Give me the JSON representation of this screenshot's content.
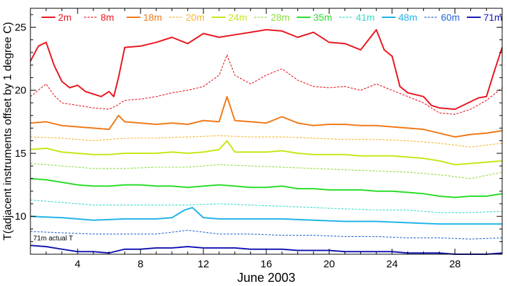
{
  "chart_data": {
    "type": "line",
    "title": "",
    "xlabel": "June 2003",
    "ylabel": "T(adjacent instruments offset by 1 degree C)",
    "xlim": [
      1,
      31
    ],
    "ylim": [
      7,
      26.5
    ],
    "xticks": [
      4,
      8,
      12,
      16,
      20,
      24,
      28
    ],
    "yticks": [
      10,
      15,
      20,
      25
    ],
    "grid": false,
    "legend_position": "top",
    "annotation": "71m actual T",
    "series": [
      {
        "name": "2m",
        "color": "#e8141c",
        "dash": "solid",
        "points": [
          [
            1,
            22.3
          ],
          [
            1.5,
            23.5
          ],
          [
            2,
            23.8
          ],
          [
            2.5,
            22
          ],
          [
            3,
            20.7
          ],
          [
            3.5,
            20.2
          ],
          [
            4,
            20.4
          ],
          [
            4.5,
            19.9
          ],
          [
            5,
            19.7
          ],
          [
            5.5,
            19.5
          ],
          [
            6,
            19.9
          ],
          [
            6.3,
            19.5
          ],
          [
            6.6,
            21
          ],
          [
            7,
            23.4
          ],
          [
            8,
            23.5
          ],
          [
            9,
            23.8
          ],
          [
            10,
            24.2
          ],
          [
            11,
            23.7
          ],
          [
            12,
            24.5
          ],
          [
            13,
            24.2
          ],
          [
            14,
            24.4
          ],
          [
            15,
            24.6
          ],
          [
            16,
            24.8
          ],
          [
            17,
            24.7
          ],
          [
            18,
            24.2
          ],
          [
            19,
            24.6
          ],
          [
            20,
            23.8
          ],
          [
            21,
            23.7
          ],
          [
            22,
            23.2
          ],
          [
            23,
            24.8
          ],
          [
            23.5,
            23.2
          ],
          [
            24,
            22.7
          ],
          [
            24.5,
            20.3
          ],
          [
            25,
            19.8
          ],
          [
            26,
            19.5
          ],
          [
            26.5,
            18.8
          ],
          [
            27,
            18.6
          ],
          [
            28,
            18.5
          ],
          [
            28.5,
            18.8
          ],
          [
            29,
            19.1
          ],
          [
            29.5,
            19.4
          ],
          [
            30,
            19.5
          ],
          [
            30.5,
            21.5
          ],
          [
            31,
            23.4
          ]
        ]
      },
      {
        "name": "8m",
        "color": "#e8141c",
        "dash": "dash",
        "points": [
          [
            1,
            19.5
          ],
          [
            2,
            20.5
          ],
          [
            2.5,
            19.6
          ],
          [
            3,
            19
          ],
          [
            4,
            18.8
          ],
          [
            5,
            18.6
          ],
          [
            6,
            18.5
          ],
          [
            6.5,
            18.8
          ],
          [
            7,
            19.2
          ],
          [
            8,
            19.3
          ],
          [
            9,
            19.5
          ],
          [
            10,
            19.8
          ],
          [
            11,
            20
          ],
          [
            12,
            20.3
          ],
          [
            13,
            21.2
          ],
          [
            13.5,
            22.8
          ],
          [
            14,
            21.2
          ],
          [
            15,
            20.5
          ],
          [
            16,
            21.2
          ],
          [
            17,
            21.7
          ],
          [
            18,
            20.8
          ],
          [
            19,
            20.3
          ],
          [
            20,
            20.2
          ],
          [
            21,
            20.3
          ],
          [
            22,
            20
          ],
          [
            23,
            20.5
          ],
          [
            24,
            20
          ],
          [
            25,
            19.5
          ],
          [
            26,
            19
          ],
          [
            27,
            18.2
          ],
          [
            28,
            18.1
          ],
          [
            29,
            18.5
          ],
          [
            30,
            19.2
          ],
          [
            31,
            20.2
          ]
        ]
      },
      {
        "name": "18m",
        "color": "#f07814",
        "dash": "solid",
        "points": [
          [
            1,
            17.4
          ],
          [
            2,
            17.5
          ],
          [
            3,
            17.2
          ],
          [
            4,
            17.1
          ],
          [
            5,
            17
          ],
          [
            6,
            16.9
          ],
          [
            6.6,
            18
          ],
          [
            7,
            17.5
          ],
          [
            8,
            17.4
          ],
          [
            9,
            17.3
          ],
          [
            10,
            17.4
          ],
          [
            11,
            17.3
          ],
          [
            12,
            17.6
          ],
          [
            13,
            17.5
          ],
          [
            13.5,
            19.5
          ],
          [
            14,
            17.6
          ],
          [
            15,
            17.5
          ],
          [
            16,
            17.4
          ],
          [
            17,
            17.9
          ],
          [
            18,
            17.4
          ],
          [
            19,
            17.2
          ],
          [
            20,
            17.3
          ],
          [
            21,
            17.3
          ],
          [
            22,
            17.2
          ],
          [
            23,
            17.2
          ],
          [
            24,
            17.1
          ],
          [
            25,
            17
          ],
          [
            26,
            16.9
          ],
          [
            27,
            16.6
          ],
          [
            28,
            16.3
          ],
          [
            29,
            16.5
          ],
          [
            30,
            16.6
          ],
          [
            31,
            16.8
          ]
        ]
      },
      {
        "name": "20m",
        "color": "#f5b428",
        "dash": "dash",
        "points": [
          [
            1,
            16.3
          ],
          [
            3,
            16.2
          ],
          [
            5,
            16
          ],
          [
            7,
            16.2
          ],
          [
            9,
            16.2
          ],
          [
            11,
            16.3
          ],
          [
            13,
            16.4
          ],
          [
            15,
            16.3
          ],
          [
            17,
            16.3
          ],
          [
            19,
            16.2
          ],
          [
            21,
            16.1
          ],
          [
            23,
            16.1
          ],
          [
            25,
            16
          ],
          [
            27,
            15.8
          ],
          [
            29,
            15.5
          ],
          [
            31,
            15.8
          ]
        ]
      },
      {
        "name": "24m",
        "color": "#c8e614",
        "dash": "solid",
        "points": [
          [
            1,
            15.3
          ],
          [
            2,
            15.4
          ],
          [
            3,
            15.1
          ],
          [
            4,
            15
          ],
          [
            5,
            14.9
          ],
          [
            6,
            14.9
          ],
          [
            7,
            15
          ],
          [
            8,
            15
          ],
          [
            9,
            15
          ],
          [
            10,
            15.1
          ],
          [
            11,
            15
          ],
          [
            12,
            15.1
          ],
          [
            13,
            15.3
          ],
          [
            13.5,
            16
          ],
          [
            14,
            15.1
          ],
          [
            15,
            15.1
          ],
          [
            16,
            15.1
          ],
          [
            17,
            15.2
          ],
          [
            18,
            15
          ],
          [
            19,
            14.9
          ],
          [
            20,
            14.9
          ],
          [
            21,
            14.9
          ],
          [
            22,
            14.8
          ],
          [
            23,
            14.8
          ],
          [
            24,
            14.8
          ],
          [
            25,
            14.7
          ],
          [
            26,
            14.6
          ],
          [
            27,
            14.4
          ],
          [
            28,
            14.1
          ],
          [
            29,
            14.2
          ],
          [
            30,
            14.3
          ],
          [
            31,
            14.4
          ]
        ]
      },
      {
        "name": "28m",
        "color": "#8cdc3c",
        "dash": "dash",
        "points": [
          [
            1,
            14.2
          ],
          [
            3,
            14
          ],
          [
            5,
            13.8
          ],
          [
            7,
            13.8
          ],
          [
            9,
            13.9
          ],
          [
            11,
            13.9
          ],
          [
            13,
            14.1
          ],
          [
            15,
            14
          ],
          [
            17,
            13.9
          ],
          [
            19,
            13.8
          ],
          [
            21,
            13.7
          ],
          [
            23,
            13.6
          ],
          [
            25,
            13.5
          ],
          [
            27,
            13.3
          ],
          [
            29,
            13
          ],
          [
            31,
            13.5
          ]
        ]
      },
      {
        "name": "35m",
        "color": "#28dc28",
        "dash": "solid",
        "points": [
          [
            1,
            13
          ],
          [
            2,
            12.9
          ],
          [
            3,
            12.7
          ],
          [
            4,
            12.5
          ],
          [
            5,
            12.4
          ],
          [
            6,
            12.4
          ],
          [
            7,
            12.5
          ],
          [
            8,
            12.5
          ],
          [
            9,
            12.4
          ],
          [
            10,
            12.4
          ],
          [
            11,
            12.3
          ],
          [
            12,
            12.4
          ],
          [
            13,
            12.5
          ],
          [
            14,
            12.4
          ],
          [
            15,
            12.3
          ],
          [
            16,
            12.3
          ],
          [
            17,
            12.4
          ],
          [
            18,
            12.2
          ],
          [
            19,
            12.2
          ],
          [
            20,
            12.1
          ],
          [
            21,
            12.1
          ],
          [
            22,
            12.1
          ],
          [
            23,
            12
          ],
          [
            24,
            12
          ],
          [
            25,
            11.9
          ],
          [
            26,
            11.8
          ],
          [
            27,
            11.6
          ],
          [
            28,
            11.5
          ],
          [
            29,
            11.6
          ],
          [
            30,
            11.6
          ],
          [
            31,
            11.8
          ]
        ]
      },
      {
        "name": "41m",
        "color": "#32dcc8",
        "dash": "dash",
        "points": [
          [
            1,
            11.3
          ],
          [
            3,
            11.1
          ],
          [
            5,
            10.9
          ],
          [
            7,
            10.9
          ],
          [
            9,
            10.9
          ],
          [
            11,
            10.9
          ],
          [
            13,
            11
          ],
          [
            15,
            10.9
          ],
          [
            17,
            10.8
          ],
          [
            19,
            10.7
          ],
          [
            21,
            10.6
          ],
          [
            23,
            10.5
          ],
          [
            25,
            10.5
          ],
          [
            27,
            10.3
          ],
          [
            29,
            10.3
          ],
          [
            31,
            10.4
          ]
        ]
      },
      {
        "name": "48m",
        "color": "#1eb4e6",
        "dash": "solid",
        "points": [
          [
            1,
            10
          ],
          [
            3,
            9.9
          ],
          [
            5,
            9.7
          ],
          [
            7,
            9.8
          ],
          [
            9,
            9.8
          ],
          [
            10,
            9.9
          ],
          [
            10.8,
            10.5
          ],
          [
            11.3,
            10.7
          ],
          [
            12,
            9.9
          ],
          [
            13,
            9.8
          ],
          [
            14,
            9.8
          ],
          [
            15,
            9.8
          ],
          [
            17,
            9.8
          ],
          [
            19,
            9.7
          ],
          [
            21,
            9.6
          ],
          [
            23,
            9.6
          ],
          [
            25,
            9.5
          ],
          [
            27,
            9.4
          ],
          [
            29,
            9.4
          ],
          [
            31,
            9.4
          ]
        ]
      },
      {
        "name": "60m",
        "color": "#2864d2",
        "dash": "dash",
        "points": [
          [
            1,
            8.8
          ],
          [
            3,
            8.7
          ],
          [
            5,
            8.6
          ],
          [
            7,
            8.6
          ],
          [
            9,
            8.6
          ],
          [
            11,
            8.9
          ],
          [
            13,
            8.6
          ],
          [
            15,
            8.6
          ],
          [
            17,
            8.5
          ],
          [
            19,
            8.5
          ],
          [
            21,
            8.4
          ],
          [
            23,
            8.4
          ],
          [
            25,
            8.3
          ],
          [
            27,
            8.3
          ],
          [
            29,
            8.2
          ],
          [
            31,
            8.3
          ]
        ]
      },
      {
        "name": "71m",
        "color": "#1414b4",
        "dash": "solid",
        "points": [
          [
            1,
            7.7
          ],
          [
            2,
            7.6
          ],
          [
            3,
            7.4
          ],
          [
            4,
            7.2
          ],
          [
            5,
            7.2
          ],
          [
            6,
            7.1
          ],
          [
            7,
            7.4
          ],
          [
            8,
            7.4
          ],
          [
            9,
            7.5
          ],
          [
            10,
            7.5
          ],
          [
            11,
            7.6
          ],
          [
            12,
            7.5
          ],
          [
            13,
            7.5
          ],
          [
            14,
            7.5
          ],
          [
            15,
            7.4
          ],
          [
            16,
            7.4
          ],
          [
            17,
            7.4
          ],
          [
            18,
            7.3
          ],
          [
            19,
            7.3
          ],
          [
            20,
            7.3
          ],
          [
            21,
            7.2
          ],
          [
            22,
            7.2
          ],
          [
            23,
            7.2
          ],
          [
            24,
            7.2
          ],
          [
            25,
            7.1
          ],
          [
            26,
            7.1
          ],
          [
            27,
            7.1
          ],
          [
            28,
            7
          ],
          [
            29,
            7
          ],
          [
            30,
            7
          ],
          [
            31,
            7.1
          ]
        ]
      }
    ]
  }
}
